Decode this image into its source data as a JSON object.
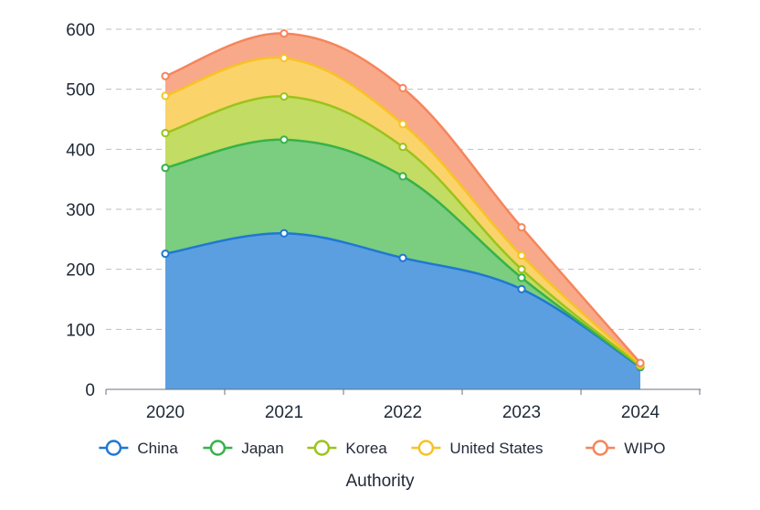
{
  "chart_data": {
    "type": "area",
    "stacked": true,
    "categories": [
      "2020",
      "2021",
      "2022",
      "2023",
      "2024"
    ],
    "series": [
      {
        "name": "China",
        "values": [
          226,
          260,
          219,
          167,
          37
        ],
        "color": "#1f78d1",
        "fill": "#5b9fe0"
      },
      {
        "name": "Japan",
        "values": [
          143,
          156,
          136,
          19,
          1
        ],
        "color": "#36b24a",
        "fill": "#7bcd7f"
      },
      {
        "name": "Korea",
        "values": [
          58,
          72,
          49,
          14,
          1
        ],
        "color": "#9ac31c",
        "fill": "#c3dc63"
      },
      {
        "name": "United States",
        "values": [
          62,
          64,
          38,
          23,
          2
        ],
        "color": "#f7c325",
        "fill": "#fad36b"
      },
      {
        "name": "WIPO",
        "values": [
          33,
          41,
          60,
          47,
          3
        ],
        "color": "#f5855b",
        "fill": "#f8a98a"
      }
    ],
    "ylim": [
      0,
      600
    ],
    "yticks": [
      0,
      100,
      200,
      300,
      400,
      500,
      600
    ],
    "xlabel": "Authority",
    "ylabel": "",
    "grid": true,
    "legend_position": "bottom"
  }
}
